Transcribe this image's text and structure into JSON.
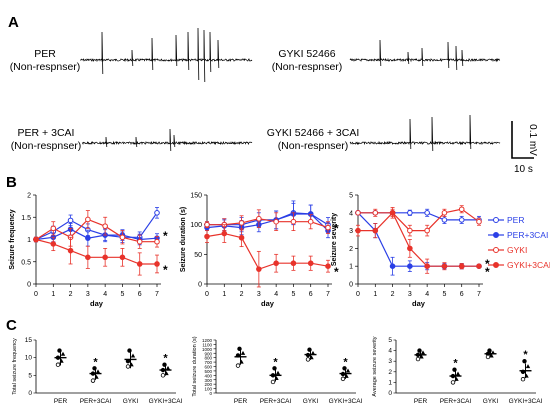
{
  "panel_labels": [
    "A",
    "B",
    "C"
  ],
  "panel_a": {
    "traces": [
      {
        "label_line1": "PER",
        "label_line2": "(Non-respnser)"
      },
      {
        "label_line1": "GYKI 52466",
        "label_line2": "(Non-respnser)"
      },
      {
        "label_line1": "PER + 3CAI",
        "label_line2": "(Non-respnser)"
      },
      {
        "label_line1": "GYKI 52466 + 3CAI",
        "label_line2": "(Non-respnser)"
      }
    ],
    "scalebar": {
      "voltage_label": "0.1 mV",
      "time_label": "10 s"
    }
  },
  "legend": [
    {
      "name": "PER",
      "color": "#2a3fe6",
      "fill": "open"
    },
    {
      "name": "PER+3CAI",
      "color": "#2a3fe6",
      "fill": "filled"
    },
    {
      "name": "GYKI",
      "color": "#e8332b",
      "fill": "open"
    },
    {
      "name": "GYKI+3CAI",
      "color": "#e8332b",
      "fill": "filled"
    }
  ],
  "colors": {
    "blue": "#2a3fe6",
    "red": "#e8332b",
    "dark": "#3a1f4a"
  },
  "chart_data": [
    {
      "type": "line",
      "panel": "B",
      "xlabel": "day",
      "ylabel": "Seizure frequency",
      "x": [
        0,
        1,
        2,
        3,
        4,
        5,
        6,
        7
      ],
      "ylim": [
        0,
        2
      ],
      "yticks": [
        "0",
        "0.5",
        "1",
        "1.5",
        "2"
      ],
      "series": [
        {
          "name": "PER",
          "values": [
            1,
            1.18,
            1.43,
            1.22,
            1.1,
            1.05,
            1.05,
            1.6
          ],
          "err": [
            0.05,
            0.12,
            0.12,
            0.13,
            0.15,
            0.12,
            0.12,
            0.12
          ]
        },
        {
          "name": "PER+3CAI",
          "values": [
            1,
            1.05,
            1.23,
            1.03,
            1.1,
            1.1,
            1.0,
            1.03
          ],
          "err": [
            0.05,
            0.1,
            0.13,
            0.18,
            0.12,
            0.12,
            0.12,
            0.1
          ]
        },
        {
          "name": "GYKI",
          "values": [
            1,
            1.25,
            1.05,
            1.45,
            1.3,
            1.05,
            0.95,
            0.95
          ],
          "err": [
            0.05,
            0.15,
            0.2,
            0.2,
            0.2,
            0.15,
            0.15,
            0.12
          ]
        },
        {
          "name": "GYKI+3CAI",
          "values": [
            1,
            0.9,
            0.75,
            0.6,
            0.6,
            0.6,
            0.45,
            0.45
          ],
          "err": [
            0.05,
            0.15,
            0.3,
            0.25,
            0.2,
            0.2,
            0.25,
            0.2
          ]
        }
      ],
      "annotations": [
        "*",
        "*"
      ]
    },
    {
      "type": "line",
      "panel": "B",
      "xlabel": "day",
      "ylabel": "Seizure duration (s)",
      "x": [
        0,
        1,
        2,
        3,
        4,
        5,
        6,
        7
      ],
      "ylim": [
        0,
        150
      ],
      "yticks": [
        "0",
        "50",
        "100",
        "150"
      ],
      "series": [
        {
          "name": "PER",
          "values": [
            100,
            100,
            100,
            108,
            108,
            120,
            118,
            100
          ],
          "err": [
            5,
            10,
            12,
            12,
            15,
            20,
            15,
            12
          ]
        },
        {
          "name": "PER+3CAI",
          "values": [
            95,
            98,
            95,
            100,
            108,
            118,
            118,
            90
          ],
          "err": [
            5,
            10,
            12,
            12,
            15,
            18,
            15,
            12
          ]
        },
        {
          "name": "GYKI",
          "values": [
            100,
            100,
            103,
            110,
            105,
            105,
            105,
            95
          ],
          "err": [
            5,
            10,
            12,
            15,
            15,
            15,
            12,
            10
          ]
        },
        {
          "name": "GYKI+3CAI",
          "values": [
            80,
            85,
            78,
            25,
            35,
            35,
            35,
            30
          ],
          "err": [
            10,
            15,
            15,
            30,
            15,
            12,
            12,
            10
          ]
        }
      ],
      "annotations": [
        "*",
        "*"
      ]
    },
    {
      "type": "line",
      "panel": "B",
      "xlabel": "day",
      "ylabel": "Seizure severity",
      "x": [
        0,
        1,
        2,
        3,
        4,
        5,
        6,
        7
      ],
      "ylim": [
        0,
        5
      ],
      "yticks": [
        "0",
        "1",
        "2",
        "3",
        "4",
        "5"
      ],
      "series": [
        {
          "name": "PER",
          "values": [
            4,
            4,
            4,
            4,
            4,
            3.6,
            3.6,
            3.6
          ],
          "err": [
            0.1,
            0.1,
            0.1,
            0.15,
            0.2,
            0.2,
            0.2,
            0.2
          ]
        },
        {
          "name": "PER+3CAI",
          "values": [
            4,
            3,
            1,
            1,
            1,
            1,
            1,
            1
          ],
          "err": [
            0.1,
            0.4,
            0.5,
            0.3,
            0.2,
            0.15,
            0.15,
            0.1
          ]
        },
        {
          "name": "GYKI",
          "values": [
            4,
            4,
            4,
            3,
            3,
            4,
            4.2,
            3.5
          ],
          "err": [
            0.1,
            0.2,
            0.2,
            0.3,
            0.3,
            0.2,
            0.2,
            0.2
          ]
        },
        {
          "name": "GYKI+3CAI",
          "values": [
            3,
            3,
            4,
            2,
            1,
            1,
            1,
            1
          ],
          "err": [
            0.3,
            0.4,
            0.3,
            0.5,
            0.4,
            0.2,
            0.15,
            0.1
          ]
        }
      ],
      "annotations": [
        "*",
        "*"
      ]
    },
    {
      "type": "scatter",
      "panel": "C",
      "ylabel": "Total seizure frequency",
      "categories": [
        "PER",
        "PER+3CAI",
        "GYKI",
        "GYKI+3CAI"
      ],
      "ylim": [
        0,
        15
      ],
      "yticks": [
        "0",
        "5",
        "10",
        "15"
      ],
      "mean": [
        10,
        5.5,
        9.5,
        6.5
      ],
      "sd": [
        2.2,
        1.8,
        2.5,
        1.6
      ],
      "points": [
        [
          12,
          11,
          10,
          9,
          8
        ],
        [
          7,
          6,
          5.5,
          4.5,
          3.5
        ],
        [
          12,
          10.5,
          9,
          8,
          7.5
        ],
        [
          8,
          7,
          6.5,
          5.5,
          5
        ]
      ],
      "annotations": [
        "*",
        "*"
      ]
    },
    {
      "type": "scatter",
      "panel": "C",
      "ylabel": "Total seizure duration (s)",
      "categories": [
        "PER",
        "PER+3CAI",
        "GYKI",
        "GYKI+3CAI"
      ],
      "ylim": [
        0,
        1200
      ],
      "yticks": [
        "0",
        "100",
        "200",
        "300",
        "400",
        "500",
        "600",
        "700",
        "800",
        "900",
        "1000",
        "1100",
        "1200"
      ],
      "mean": [
        820,
        400,
        870,
        440
      ],
      "sd": [
        180,
        140,
        120,
        120
      ],
      "points": [
        [
          1000,
          900,
          850,
          700,
          620
        ],
        [
          560,
          450,
          400,
          330,
          250
        ],
        [
          980,
          900,
          860,
          800,
          760
        ],
        [
          560,
          500,
          430,
          380,
          320
        ]
      ],
      "annotations": [
        "*",
        "*"
      ]
    },
    {
      "type": "scatter",
      "panel": "C",
      "ylabel": "Average seizure severity",
      "categories": [
        "PER",
        "PER+3CAI",
        "GYKI",
        "GYKI+3CAI"
      ],
      "ylim": [
        0,
        5
      ],
      "yticks": [
        "0",
        "1",
        "2",
        "3",
        "4",
        "5"
      ],
      "mean": [
        3.6,
        1.6,
        3.7,
        2.1
      ],
      "sd": [
        0.3,
        0.5,
        0.25,
        0.7
      ],
      "points": [
        [
          4,
          3.8,
          3.6,
          3.4,
          3.2
        ],
        [
          2.2,
          1.8,
          1.6,
          1.3,
          1.0
        ],
        [
          4,
          3.8,
          3.7,
          3.5,
          3.4
        ],
        [
          3,
          2.5,
          2,
          1.6,
          1.3
        ]
      ],
      "annotations": [
        "*",
        "*"
      ]
    }
  ]
}
